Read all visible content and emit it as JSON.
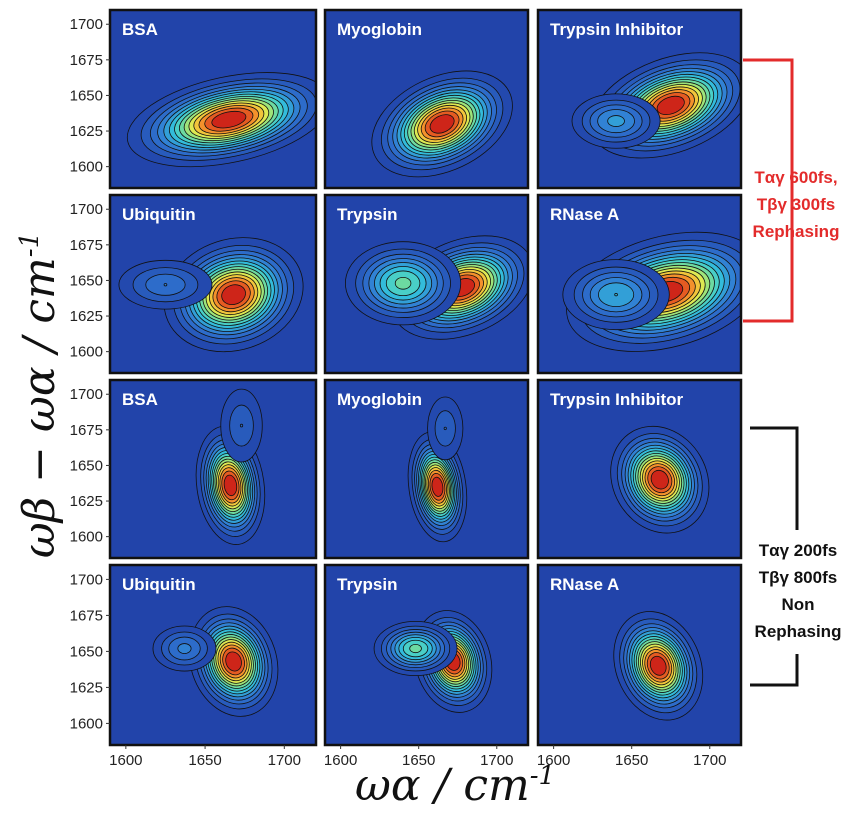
{
  "y_axis_title": {
    "main": "ωβ − ωα / cm",
    "sup": "-1"
  },
  "x_axis_title": {
    "main": "ωα / cm",
    "sup": "-1"
  },
  "annotations": [
    {
      "lines": [
        "Tαγ 600fs,",
        "Tβγ 300fs",
        "Rephasing"
      ],
      "color": "#e32b2b"
    },
    {
      "lines": [
        "Tαγ 200fs",
        "Tβγ 800fs",
        "Non",
        "Rephasing"
      ],
      "color": "#111111"
    }
  ],
  "chart_data": [
    {
      "type": "heatmap",
      "title": "BSA",
      "group": "Rephasing",
      "xlim": [
        1590,
        1720
      ],
      "ylim": [
        1585,
        1710
      ],
      "x_ticks": [
        1600,
        1650,
        1700
      ],
      "y_ticks": [
        1600,
        1625,
        1650,
        1675,
        1700
      ],
      "peaks": [
        {
          "x": 1665,
          "y": 1633,
          "sx": 22,
          "sy": 10,
          "rot": 12,
          "amp": 1.0
        }
      ]
    },
    {
      "type": "heatmap",
      "title": "Myoglobin",
      "group": "Rephasing",
      "xlim": [
        1590,
        1720
      ],
      "ylim": [
        1585,
        1710
      ],
      "x_ticks": [
        1600,
        1650,
        1700
      ],
      "y_ticks": [
        1600,
        1625,
        1650,
        1675,
        1700
      ],
      "peaks": [
        {
          "x": 1665,
          "y": 1630,
          "sx": 16,
          "sy": 11,
          "rot": 25,
          "amp": 1.0
        }
      ]
    },
    {
      "type": "heatmap",
      "title": "Trypsin Inhibitor",
      "group": "Rephasing",
      "xlim": [
        1590,
        1720
      ],
      "ylim": [
        1585,
        1710
      ],
      "x_ticks": [
        1600,
        1650,
        1700
      ],
      "y_ticks": [
        1600,
        1625,
        1650,
        1675,
        1700
      ],
      "peaks": [
        {
          "x": 1675,
          "y": 1643,
          "sx": 18,
          "sy": 11,
          "rot": 20,
          "amp": 1.0
        },
        {
          "x": 1640,
          "y": 1632,
          "sx": 12,
          "sy": 8,
          "rot": 0,
          "amp": 0.35
        }
      ]
    },
    {
      "type": "heatmap",
      "title": "Ubiquitin",
      "group": "Rephasing",
      "xlim": [
        1590,
        1720
      ],
      "ylim": [
        1585,
        1710
      ],
      "x_ticks": [
        1600,
        1650,
        1700
      ],
      "y_ticks": [
        1600,
        1625,
        1650,
        1675,
        1700
      ],
      "peaks": [
        {
          "x": 1668,
          "y": 1640,
          "sx": 15,
          "sy": 13,
          "rot": 18,
          "amp": 1.0
        },
        {
          "x": 1625,
          "y": 1647,
          "sx": 14,
          "sy": 8,
          "rot": 0,
          "amp": 0.25
        }
      ]
    },
    {
      "type": "heatmap",
      "title": "Trypsin",
      "group": "Rephasing",
      "xlim": [
        1590,
        1720
      ],
      "ylim": [
        1585,
        1710
      ],
      "x_ticks": [
        1600,
        1650,
        1700
      ],
      "y_ticks": [
        1600,
        1625,
        1650,
        1675,
        1700
      ],
      "peaks": [
        {
          "x": 1678,
          "y": 1645,
          "sx": 16,
          "sy": 11,
          "rot": 22,
          "amp": 1.0
        },
        {
          "x": 1640,
          "y": 1648,
          "sx": 14,
          "sy": 11,
          "rot": 0,
          "amp": 0.55
        }
      ]
    },
    {
      "type": "heatmap",
      "title": "RNase A",
      "group": "Rephasing",
      "xlim": [
        1590,
        1720
      ],
      "ylim": [
        1585,
        1710
      ],
      "x_ticks": [
        1600,
        1650,
        1700
      ],
      "y_ticks": [
        1600,
        1625,
        1650,
        1675,
        1700
      ],
      "peaks": [
        {
          "x": 1672,
          "y": 1642,
          "sx": 22,
          "sy": 13,
          "rot": 15,
          "amp": 1.0
        },
        {
          "x": 1640,
          "y": 1640,
          "sx": 14,
          "sy": 10,
          "rot": 0,
          "amp": 0.4
        }
      ]
    },
    {
      "type": "heatmap",
      "title": "BSA",
      "group": "Non Rephasing",
      "xlim": [
        1590,
        1720
      ],
      "ylim": [
        1585,
        1710
      ],
      "x_ticks": [
        1600,
        1650,
        1700
      ],
      "y_ticks": [
        1600,
        1625,
        1650,
        1675,
        1700
      ],
      "peaks": [
        {
          "x": 1666,
          "y": 1636,
          "sx": 7,
          "sy": 14,
          "rot": 8,
          "amp": 1.0
        },
        {
          "x": 1673,
          "y": 1678,
          "sx": 7,
          "sy": 14,
          "rot": 0,
          "amp": 0.18
        }
      ]
    },
    {
      "type": "heatmap",
      "title": "Myoglobin",
      "group": "Non Rephasing",
      "xlim": [
        1590,
        1720
      ],
      "ylim": [
        1585,
        1710
      ],
      "x_ticks": [
        1600,
        1650,
        1700
      ],
      "y_ticks": [
        1600,
        1625,
        1650,
        1675,
        1700
      ],
      "peaks": [
        {
          "x": 1662,
          "y": 1635,
          "sx": 6,
          "sy": 13,
          "rot": 8,
          "amp": 1.0
        },
        {
          "x": 1667,
          "y": 1676,
          "sx": 6,
          "sy": 12,
          "rot": 0,
          "amp": 0.18
        }
      ]
    },
    {
      "type": "heatmap",
      "title": "Trypsin Inhibitor",
      "group": "Non Rephasing",
      "xlim": [
        1590,
        1720
      ],
      "ylim": [
        1585,
        1710
      ],
      "x_ticks": [
        1600,
        1650,
        1700
      ],
      "y_ticks": [
        1600,
        1625,
        1650,
        1675,
        1700
      ],
      "peaks": [
        {
          "x": 1668,
          "y": 1640,
          "sx": 10,
          "sy": 13,
          "rot": 30,
          "amp": 1.0
        }
      ]
    },
    {
      "type": "heatmap",
      "title": "Ubiquitin",
      "group": "Non Rephasing",
      "xlim": [
        1590,
        1720
      ],
      "ylim": [
        1585,
        1710
      ],
      "x_ticks": [
        1600,
        1650,
        1700
      ],
      "y_ticks": [
        1600,
        1625,
        1650,
        1675,
        1700
      ],
      "peaks": [
        {
          "x": 1668,
          "y": 1643,
          "sx": 9,
          "sy": 13,
          "rot": 18,
          "amp": 1.0
        },
        {
          "x": 1637,
          "y": 1652,
          "sx": 9,
          "sy": 7,
          "rot": 0,
          "amp": 0.28
        }
      ]
    },
    {
      "type": "heatmap",
      "title": "Trypsin",
      "group": "Non Rephasing",
      "xlim": [
        1590,
        1720
      ],
      "ylim": [
        1585,
        1710
      ],
      "x_ticks": [
        1600,
        1650,
        1700
      ],
      "y_ticks": [
        1600,
        1625,
        1650,
        1675,
        1700
      ],
      "peaks": [
        {
          "x": 1672,
          "y": 1643,
          "sx": 8,
          "sy": 12,
          "rot": 15,
          "amp": 1.0
        },
        {
          "x": 1648,
          "y": 1652,
          "sx": 10,
          "sy": 7,
          "rot": 0,
          "amp": 0.55
        }
      ]
    },
    {
      "type": "heatmap",
      "title": "RNase A",
      "group": "Non Rephasing",
      "xlim": [
        1590,
        1720
      ],
      "ylim": [
        1585,
        1710
      ],
      "x_ticks": [
        1600,
        1650,
        1700
      ],
      "y_ticks": [
        1600,
        1625,
        1650,
        1675,
        1700
      ],
      "peaks": [
        {
          "x": 1667,
          "y": 1640,
          "sx": 9,
          "sy": 13,
          "rot": 22,
          "amp": 1.0
        }
      ]
    }
  ]
}
